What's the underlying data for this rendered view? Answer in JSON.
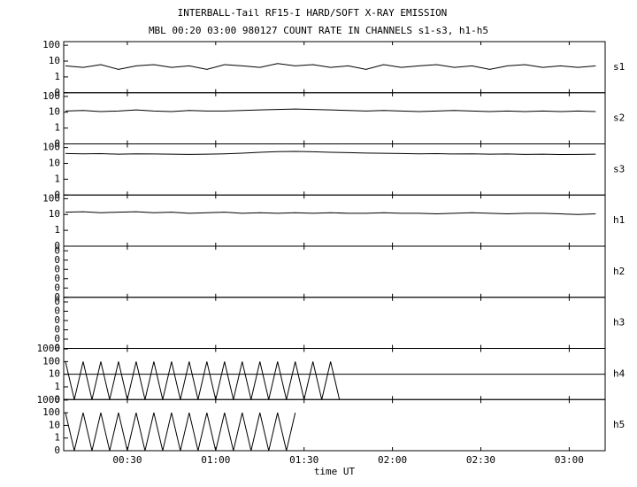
{
  "header": {
    "title": "INTERBALL-Tail RF15-I HARD/SOFT X-RAY EMISSION",
    "subtitle": "MBL 00:20 03:00 980127  COUNT RATE IN CHANNELS s1-s3, h1-h5"
  },
  "x_axis": {
    "label": "time UT",
    "xlim": [
      8.4,
      192.2
    ],
    "xticks": [
      {
        "value": 30,
        "label": "00:30"
      },
      {
        "value": 60,
        "label": "01:00"
      },
      {
        "value": 90,
        "label": "01:30"
      },
      {
        "value": 120,
        "label": "02:00"
      },
      {
        "value": 150,
        "label": "02:30"
      },
      {
        "value": 180,
        "label": "03:00"
      }
    ]
  },
  "chart_data": [
    {
      "type": "line",
      "label": "s1",
      "log": true,
      "ylim": [
        0.1,
        170
      ],
      "yticks": [
        100,
        10,
        1,
        {
          "value": 0.1,
          "label": "0"
        }
      ],
      "series": [
        {
          "color": "#000000",
          "x": [
            9,
            15,
            21,
            27,
            33,
            39,
            45,
            51,
            57,
            63,
            69,
            75,
            81,
            87,
            93,
            99,
            105,
            111,
            117,
            123,
            129,
            135,
            141,
            147,
            153,
            159,
            165,
            171,
            177,
            183,
            189
          ],
          "values": [
            5,
            4,
            6,
            3,
            5,
            6,
            4,
            5,
            3,
            6,
            5,
            4,
            7,
            5,
            6,
            4,
            5,
            3,
            6,
            4,
            5,
            6,
            4,
            5,
            3,
            5,
            6,
            4,
            5,
            4,
            5
          ]
        }
      ]
    },
    {
      "type": "line",
      "label": "s2",
      "log": true,
      "ylim": [
        0.1,
        170
      ],
      "yticks": [
        100,
        10,
        1,
        {
          "value": 0.1,
          "label": "0"
        }
      ],
      "series": [
        {
          "color": "#000000",
          "x": [
            9,
            15,
            21,
            27,
            33,
            39,
            45,
            51,
            57,
            63,
            69,
            75,
            81,
            87,
            93,
            99,
            105,
            111,
            117,
            123,
            129,
            135,
            141,
            147,
            153,
            159,
            165,
            171,
            177,
            183,
            189
          ],
          "values": [
            12,
            13,
            11,
            12,
            14,
            12,
            11,
            13,
            12,
            12,
            13,
            14,
            15,
            16,
            15,
            14,
            13,
            12,
            13,
            12,
            11,
            12,
            13,
            12,
            11,
            12,
            11,
            12,
            11,
            12,
            11
          ]
        }
      ]
    },
    {
      "type": "line",
      "label": "s3",
      "log": true,
      "ylim": [
        0.1,
        170
      ],
      "yticks": [
        100,
        10,
        1,
        {
          "value": 0.1,
          "label": "0"
        }
      ],
      "series": [
        {
          "color": "#000000",
          "x": [
            9,
            15,
            21,
            27,
            33,
            39,
            45,
            51,
            57,
            63,
            69,
            75,
            81,
            87,
            93,
            99,
            105,
            111,
            117,
            123,
            129,
            135,
            141,
            147,
            153,
            159,
            165,
            171,
            177,
            183,
            189
          ],
          "values": [
            42,
            40,
            41,
            38,
            40,
            39,
            38,
            37,
            38,
            40,
            44,
            50,
            55,
            57,
            54,
            50,
            48,
            45,
            43,
            42,
            40,
            41,
            39,
            40,
            38,
            39,
            37,
            38,
            36,
            37,
            38
          ]
        }
      ]
    },
    {
      "type": "line",
      "label": "h1",
      "log": true,
      "ylim": [
        0.1,
        170
      ],
      "yticks": [
        100,
        10,
        1,
        {
          "value": 0.1,
          "label": "0"
        }
      ],
      "series": [
        {
          "color": "#000000",
          "x": [
            9,
            15,
            21,
            27,
            33,
            39,
            45,
            51,
            57,
            63,
            69,
            75,
            81,
            87,
            93,
            99,
            105,
            111,
            117,
            123,
            129,
            135,
            141,
            147,
            153,
            159,
            165,
            171,
            177,
            183,
            189
          ],
          "values": [
            14,
            15,
            13,
            14,
            15,
            13,
            14,
            12,
            13,
            14,
            12,
            13,
            12,
            13,
            12,
            13,
            12,
            12,
            13,
            12,
            12,
            11,
            12,
            13,
            12,
            11,
            12,
            12,
            11,
            10,
            11
          ]
        }
      ]
    },
    {
      "type": "line",
      "label": "h2",
      "log": false,
      "ylim": [
        0,
        0.55
      ],
      "yticks": [
        {
          "value": 0,
          "label": "0"
        },
        {
          "value": 0.1,
          "label": "0"
        },
        {
          "value": 0.2,
          "label": "0"
        },
        {
          "value": 0.3,
          "label": "0"
        },
        {
          "value": 0.4,
          "label": "0"
        },
        {
          "value": 0.5,
          "label": "0"
        }
      ],
      "series": []
    },
    {
      "type": "line",
      "label": "h3",
      "log": false,
      "ylim": [
        0,
        0.55
      ],
      "yticks": [
        {
          "value": 0,
          "label": "0"
        },
        {
          "value": 0.1,
          "label": "0"
        },
        {
          "value": 0.2,
          "label": "0"
        },
        {
          "value": 0.3,
          "label": "0"
        },
        {
          "value": 0.4,
          "label": "0"
        },
        {
          "value": 0.5,
          "label": "0"
        }
      ],
      "series": []
    },
    {
      "type": "line",
      "label": "h4",
      "log": true,
      "ylim": [
        0.1,
        1100
      ],
      "yticks": [
        1000,
        100,
        10,
        1,
        {
          "value": 0.1,
          "label": "0"
        }
      ],
      "series": [
        {
          "color": "#000000",
          "x": [
            9,
            12,
            15,
            18,
            21,
            24,
            27,
            30,
            33,
            36,
            39,
            42,
            45,
            48,
            51,
            54,
            57,
            60,
            63,
            66,
            69,
            72,
            75,
            78,
            81,
            84,
            87,
            90,
            93,
            96,
            99,
            102
          ],
          "values": [
            100,
            0.1,
            100,
            0.1,
            100,
            0.1,
            100,
            0.1,
            100,
            0.1,
            100,
            0.1,
            100,
            0.1,
            100,
            0.1,
            100,
            0.1,
            100,
            0.1,
            100,
            0.1,
            100,
            0.1,
            100,
            0.1,
            100,
            0.1,
            100,
            0.1,
            100,
            0.1
          ]
        },
        {
          "color": "#000000",
          "x": [
            8.4,
            192.2
          ],
          "values": [
            10,
            10
          ]
        }
      ]
    },
    {
      "type": "line",
      "label": "h5",
      "log": true,
      "ylim": [
        0.1,
        1100
      ],
      "yticks": [
        1000,
        100,
        10,
        1,
        {
          "value": 0.1,
          "label": "0"
        }
      ],
      "series": [
        {
          "color": "#000000",
          "x": [
            9,
            12,
            15,
            18,
            21,
            24,
            27,
            30,
            33,
            36,
            39,
            42,
            45,
            48,
            51,
            54,
            57,
            60,
            63,
            66,
            69,
            72,
            75,
            78,
            81,
            84,
            87
          ],
          "values": [
            100,
            0.1,
            100,
            0.1,
            100,
            0.1,
            100,
            0.1,
            100,
            0.1,
            100,
            0.1,
            100,
            0.1,
            100,
            0.1,
            100,
            0.1,
            100,
            0.1,
            100,
            0.1,
            100,
            0.1,
            100,
            0.1,
            100
          ]
        }
      ]
    }
  ]
}
